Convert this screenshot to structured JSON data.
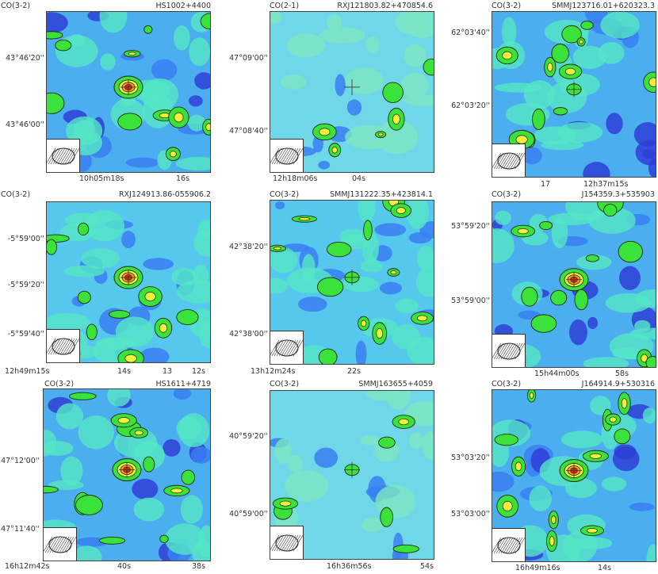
{
  "panels": [
    {
      "line": "CO(3-2)",
      "source": "HS1002+4400",
      "dec_ticks": [
        "43°46'20''",
        "43°46'00''"
      ],
      "ra_ticks": [
        "10h05m18s",
        "16s"
      ],
      "palette": "rich",
      "peak": "strong"
    },
    {
      "line": "CO(2-1)",
      "source": "RXJ121803.82+470854.6",
      "dec_ticks": [
        "47°09'00''",
        "47°08'40''"
      ],
      "ra_ticks": [
        "12h18m06s",
        "04s"
      ],
      "palette": "pale",
      "peak": "none"
    },
    {
      "line": "CO(3-2)",
      "source": "SMMJ123716.01+620323.3",
      "dec_ticks": [
        "62°03'40''",
        "62°03'20''"
      ],
      "ra_ticks": [
        "17",
        "12h37m15s"
      ],
      "palette": "rich",
      "peak": "weak"
    },
    {
      "line": "CO(3-2)",
      "source": "RXJ124913.86-055906.2",
      "dec_ticks": [
        "-5°59'00''",
        "-5°59'20''",
        "-5°59'40''"
      ],
      "ra_ticks": [
        "12h49m15s",
        "14s",
        "13",
        "12s"
      ],
      "palette": "mid",
      "peak": "strong"
    },
    {
      "line": "CO(3-2)",
      "source": "SMMJ131222.35+423814.1",
      "dec_ticks": [
        "42°38'20''",
        "42°38'00''"
      ],
      "ra_ticks": [
        "13h12m24s",
        "22s"
      ],
      "palette": "mid",
      "peak": "weak"
    },
    {
      "line": "CO(3-2)",
      "source": "J154359.3+535903",
      "dec_ticks": [
        "53°59'20''",
        "53°59'00''"
      ],
      "ra_ticks": [
        "15h44m00s",
        "58s"
      ],
      "palette": "rich",
      "peak": "strong"
    },
    {
      "line": "CO(3-2)",
      "source": "HS1611+4719",
      "dec_ticks": [
        "47°12'00''",
        "47°11'40''"
      ],
      "ra_ticks": [
        "16h12m42s",
        "40s",
        "38s"
      ],
      "palette": "rich",
      "peak": "strong"
    },
    {
      "line": "CO(3-2)",
      "source": "SMMJ163655+4059",
      "dec_ticks": [
        "40°59'20''",
        "40°59'00''"
      ],
      "ra_ticks": [
        "16h36m56s",
        "54s"
      ],
      "palette": "pale",
      "peak": "weak"
    },
    {
      "line": "CO(3-2)",
      "source": "J164914.9+530316",
      "dec_ticks": [
        "53°03'20''",
        "53°03'00''"
      ],
      "ra_ticks": [
        "16h49m16s",
        "14s"
      ],
      "palette": "rich",
      "peak": "strong"
    }
  ],
  "colors": {
    "deep": "#2f3fd6",
    "blue": "#3a7ff2",
    "cyan": "#5ec9f5",
    "aqua": "#55e6c5",
    "green": "#3ce23c",
    "yellow": "#f2ee3c",
    "orange": "#f5a020",
    "red": "#e02418",
    "contour": "#1c2a12"
  }
}
